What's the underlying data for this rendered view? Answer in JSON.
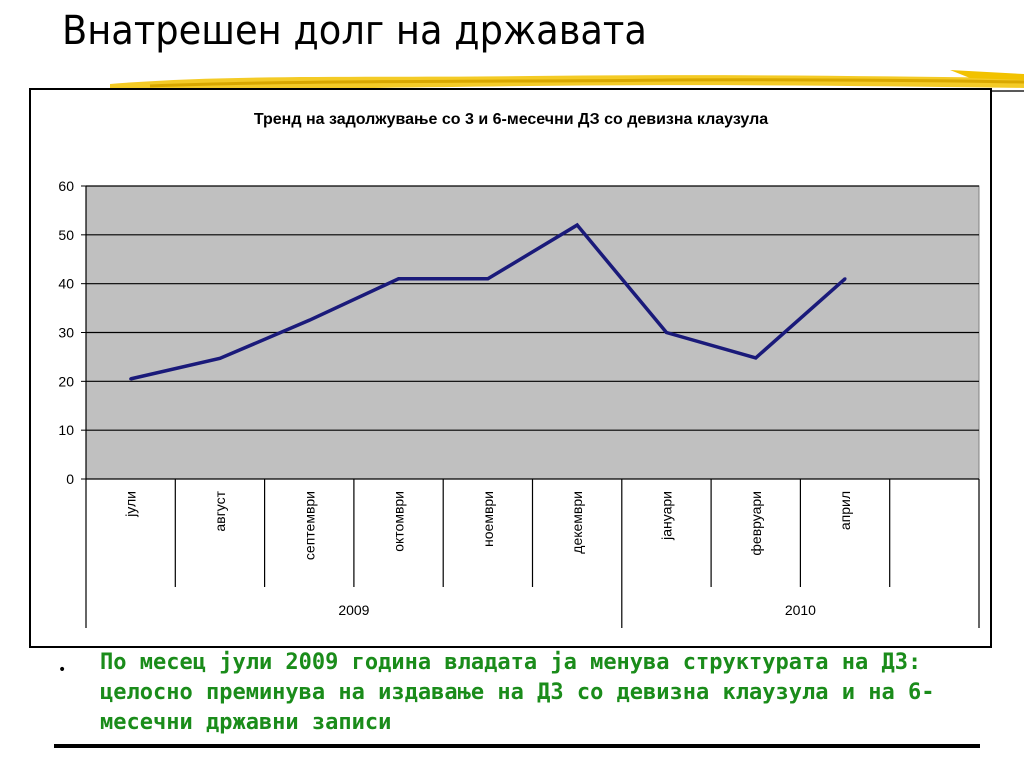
{
  "slide": {
    "title": "Внатрешен долг на државата",
    "bullet": "По месец јули 2009 година владата ја менува структурата на ДЗ: целосно преминува на издавање на ДЗ со девизна клаузула и на 6-месечни државни записи"
  },
  "colors": {
    "plot_background": "#c0c0c0",
    "line": "#1a1a7a",
    "bullet_text": "#1a8c1a",
    "brush_accent": "#f2c200"
  },
  "chart_data": {
    "type": "line",
    "title": "Тренд на задолжување со 3 и 6-месечни ДЗ со девизна клаузула",
    "xlabel": "",
    "ylabel": "",
    "ylim": [
      0,
      60
    ],
    "yticks": [
      0,
      10,
      20,
      30,
      40,
      50,
      60
    ],
    "grid": true,
    "legend": "none",
    "categories": [
      "јули",
      "август",
      "септември",
      "октомври",
      "ноември",
      "декември",
      "јануари",
      "февруари",
      "април"
    ],
    "extra_empty_category": true,
    "groups": [
      {
        "label": "2009",
        "span": 6
      },
      {
        "label": "2010",
        "span": 4
      }
    ],
    "series": [
      {
        "values": [
          20.5,
          24.7,
          32.5,
          41,
          41,
          52,
          30,
          24.8,
          41
        ]
      }
    ]
  }
}
